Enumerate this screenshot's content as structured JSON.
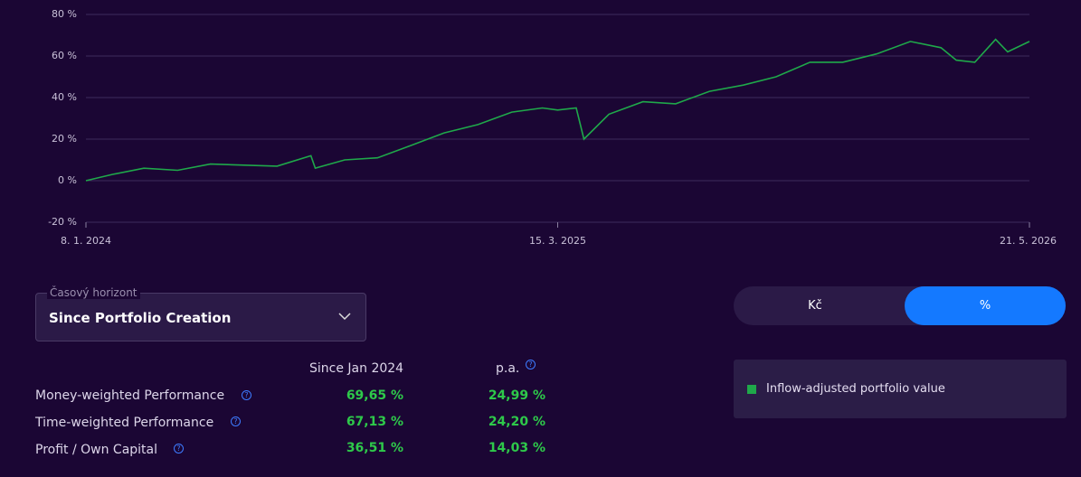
{
  "chart_data": {
    "type": "line",
    "x": [
      "8. 1. 2024",
      "1. 2. 2024",
      "1. 3. 2024",
      "1. 4. 2024",
      "1. 5. 2024",
      "1. 6. 2024",
      "1. 7. 2024",
      "1. 8. 2024",
      "5. 8. 2024",
      "1. 9. 2024",
      "1. 10. 2024",
      "1. 11. 2024",
      "1. 12. 2024",
      "1. 1. 2025",
      "1. 2. 2025",
      "1. 3. 2025",
      "15. 3. 2025",
      "1. 4. 2025",
      "8. 4. 2025",
      "1. 5. 2025",
      "1. 6. 2025",
      "1. 7. 2025",
      "1. 8. 2025",
      "1. 9. 2025",
      "1. 10. 2025",
      "1. 11. 2025",
      "1. 12. 2025",
      "1. 1. 2026",
      "1. 2. 2026",
      "1. 3. 2026",
      "15. 3. 2026",
      "1. 4. 2026",
      "20. 4. 2026",
      "1. 5. 2026",
      "21. 5. 2026"
    ],
    "series": [
      {
        "name": "Inflow-adjusted portfolio value",
        "color": "#1fa84a",
        "values": [
          0,
          3,
          6,
          5,
          8,
          7.5,
          7,
          12,
          6,
          10,
          11,
          17,
          23,
          27,
          33,
          35,
          34,
          35,
          20,
          32,
          38,
          37,
          43,
          46,
          50,
          57,
          57,
          61,
          67,
          64,
          58,
          57,
          68,
          62,
          67
        ]
      }
    ],
    "xlim": [
      "8. 1. 2024",
      "21. 5. 2026"
    ],
    "xticks": [
      "8. 1. 2024",
      "15. 3. 2025",
      "21. 5. 2026"
    ],
    "ylim": [
      -20,
      80
    ],
    "yticks": [
      {
        "value": -20,
        "label": "-20 %"
      },
      {
        "value": 0,
        "label": "0 %"
      },
      {
        "value": 20,
        "label": "20 %"
      },
      {
        "value": 40,
        "label": "40 %"
      },
      {
        "value": 60,
        "label": "60 %"
      },
      {
        "value": 80,
        "label": "80 %"
      }
    ],
    "grid": true
  },
  "horizon": {
    "label": "Časový horizont",
    "value": "Since Portfolio Creation"
  },
  "toggle": {
    "options": [
      "Kč",
      "%"
    ],
    "active": 1
  },
  "table": {
    "headers": [
      "Since Jan 2024",
      "p.a."
    ],
    "rows": [
      [
        "Money-weighted Performance",
        "69,65 %",
        "24,99 %"
      ],
      [
        "Time-weighted Performance",
        "67,13 %",
        "24,20 %"
      ],
      [
        "Profit / Own Capital",
        "36,51 %",
        "14,03 %"
      ]
    ]
  }
}
